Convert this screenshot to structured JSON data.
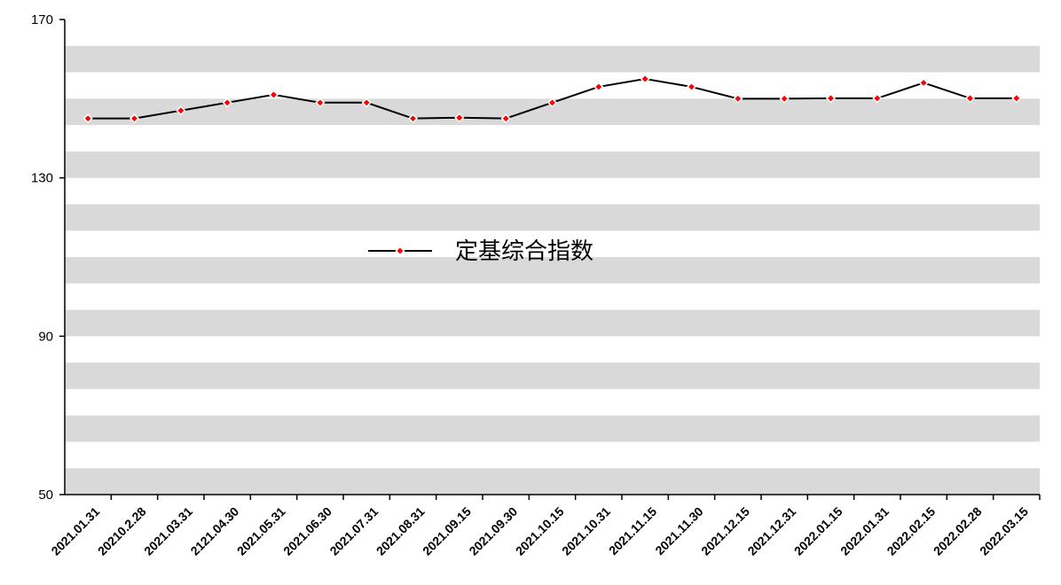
{
  "chart_data": {
    "type": "line",
    "categories": [
      "2021.01.31",
      "20210.2.28",
      "2021.03.31",
      "2121.04.30",
      "2021.05.31",
      "2021.06.30",
      "2021.07.31",
      "2021.08.31",
      "2021.09.15",
      "2021.09.30",
      "2021.10.15",
      "2021.10.31",
      "2021.11.15",
      "2021.11.30",
      "2021.12.15",
      "2021.12.31",
      "2022.01.15",
      "2022.01.31",
      "2022.02.15",
      "2022.02.28",
      "2022.03.15"
    ],
    "series": [
      {
        "name": "定基综合指数",
        "color": "#000000",
        "marker_color": "#ff0000",
        "values": [
          145,
          145,
          147,
          149,
          151,
          149,
          149,
          145,
          145.2,
          145,
          149,
          153,
          155,
          153,
          150,
          150,
          150.1,
          150.1,
          154,
          150.1,
          150.1
        ]
      }
    ],
    "ylim": [
      50,
      170
    ],
    "yticks": [
      50,
      90,
      130,
      170
    ],
    "legend": "center",
    "grid": "bands"
  }
}
